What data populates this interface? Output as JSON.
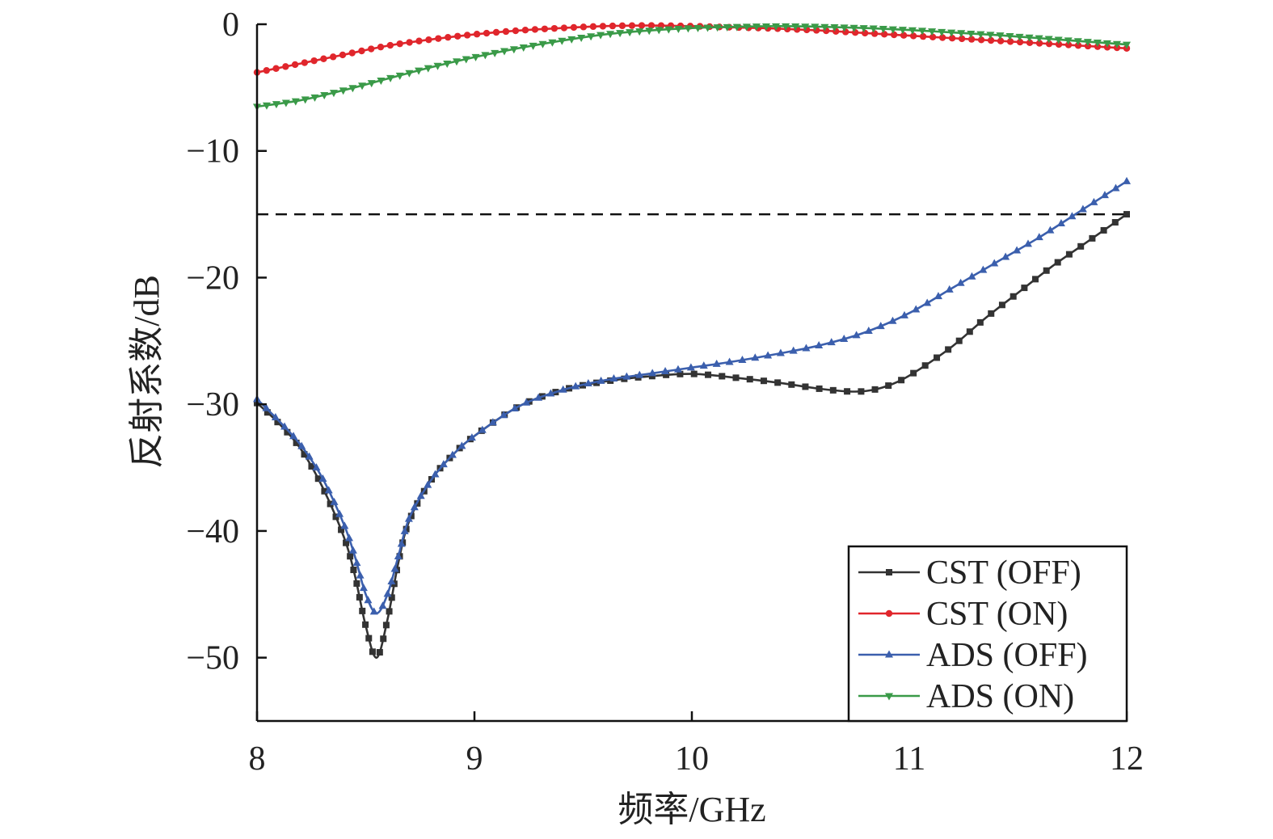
{
  "chart_data": {
    "type": "line",
    "xlabel": "频率/GHz",
    "ylabel": "反射系数/dB",
    "xlim": [
      8,
      12
    ],
    "ylim": [
      -55,
      0
    ],
    "xticks": [
      8,
      9,
      10,
      11,
      12
    ],
    "xtick_labels": [
      "8",
      "9",
      "10",
      "11",
      "12"
    ],
    "yticks": [
      0,
      -10,
      -20,
      -30,
      -40,
      -50
    ],
    "ytick_labels": [
      "0",
      "−10",
      "−20",
      "−30",
      "−40",
      "−50"
    ],
    "grid": false,
    "legend_position": "bottom-right",
    "reference_line": {
      "y": -15,
      "style": "dashed",
      "color": "#111111"
    },
    "series": [
      {
        "name": "CST (OFF)",
        "color": "#333333",
        "marker": "square",
        "points": [
          [
            8.0,
            -29.9
          ],
          [
            8.1,
            -31.5
          ],
          [
            8.2,
            -33.5
          ],
          [
            8.3,
            -36.5
          ],
          [
            8.4,
            -40.5
          ],
          [
            8.45,
            -43.5
          ],
          [
            8.5,
            -47.5
          ],
          [
            8.55,
            -50.0
          ],
          [
            8.6,
            -47.0
          ],
          [
            8.65,
            -42.5
          ],
          [
            8.7,
            -39.2
          ],
          [
            8.8,
            -36.0
          ],
          [
            8.9,
            -34.0
          ],
          [
            9.0,
            -32.5
          ],
          [
            9.2,
            -30.2
          ],
          [
            9.4,
            -28.9
          ],
          [
            9.6,
            -28.2
          ],
          [
            9.8,
            -27.8
          ],
          [
            10.0,
            -27.6
          ],
          [
            10.2,
            -27.9
          ],
          [
            10.4,
            -28.3
          ],
          [
            10.6,
            -28.8
          ],
          [
            10.75,
            -29.0
          ],
          [
            10.85,
            -28.8
          ],
          [
            10.95,
            -28.2
          ],
          [
            11.05,
            -27.2
          ],
          [
            11.2,
            -25.4
          ],
          [
            11.35,
            -23.2
          ],
          [
            11.5,
            -21.2
          ],
          [
            11.65,
            -19.2
          ],
          [
            11.8,
            -17.4
          ],
          [
            11.9,
            -16.2
          ],
          [
            12.0,
            -15.0
          ]
        ]
      },
      {
        "name": "CST (ON)",
        "color": "#e0262c",
        "marker": "circle",
        "points": [
          [
            8.0,
            -3.8
          ],
          [
            8.2,
            -3.1
          ],
          [
            8.4,
            -2.4
          ],
          [
            8.6,
            -1.7
          ],
          [
            8.8,
            -1.2
          ],
          [
            9.0,
            -0.8
          ],
          [
            9.2,
            -0.5
          ],
          [
            9.4,
            -0.3
          ],
          [
            9.6,
            -0.15
          ],
          [
            9.8,
            -0.1
          ],
          [
            10.0,
            -0.15
          ],
          [
            10.2,
            -0.25
          ],
          [
            10.4,
            -0.35
          ],
          [
            10.6,
            -0.5
          ],
          [
            10.8,
            -0.7
          ],
          [
            11.0,
            -0.9
          ],
          [
            11.2,
            -1.1
          ],
          [
            11.4,
            -1.3
          ],
          [
            11.6,
            -1.5
          ],
          [
            11.8,
            -1.7
          ],
          [
            12.0,
            -1.9
          ]
        ]
      },
      {
        "name": "ADS (OFF)",
        "color": "#3b5fad",
        "marker": "triangle-up",
        "points": [
          [
            8.0,
            -29.6
          ],
          [
            8.1,
            -31.3
          ],
          [
            8.2,
            -33.2
          ],
          [
            8.3,
            -35.8
          ],
          [
            8.4,
            -39.5
          ],
          [
            8.45,
            -42.0
          ],
          [
            8.5,
            -45.0
          ],
          [
            8.55,
            -46.5
          ],
          [
            8.6,
            -45.0
          ],
          [
            8.65,
            -42.0
          ],
          [
            8.7,
            -39.0
          ],
          [
            8.8,
            -36.0
          ],
          [
            8.9,
            -34.0
          ],
          [
            9.0,
            -32.5
          ],
          [
            9.2,
            -30.2
          ],
          [
            9.4,
            -28.9
          ],
          [
            9.6,
            -28.1
          ],
          [
            9.8,
            -27.6
          ],
          [
            10.0,
            -27.1
          ],
          [
            10.2,
            -26.6
          ],
          [
            10.4,
            -26.0
          ],
          [
            10.6,
            -25.3
          ],
          [
            10.8,
            -24.3
          ],
          [
            11.0,
            -22.8
          ],
          [
            11.2,
            -20.8
          ],
          [
            11.4,
            -18.8
          ],
          [
            11.6,
            -16.8
          ],
          [
            11.8,
            -14.6
          ],
          [
            12.0,
            -12.4
          ]
        ]
      },
      {
        "name": "ADS (ON)",
        "color": "#3a9a48",
        "marker": "triangle-down",
        "points": [
          [
            8.0,
            -6.5
          ],
          [
            8.2,
            -6.0
          ],
          [
            8.4,
            -5.2
          ],
          [
            8.6,
            -4.3
          ],
          [
            8.8,
            -3.4
          ],
          [
            9.0,
            -2.6
          ],
          [
            9.2,
            -1.9
          ],
          [
            9.4,
            -1.3
          ],
          [
            9.6,
            -0.8
          ],
          [
            9.8,
            -0.5
          ],
          [
            10.0,
            -0.3
          ],
          [
            10.2,
            -0.2
          ],
          [
            10.4,
            -0.15
          ],
          [
            10.6,
            -0.2
          ],
          [
            10.8,
            -0.3
          ],
          [
            11.0,
            -0.45
          ],
          [
            11.2,
            -0.65
          ],
          [
            11.4,
            -0.85
          ],
          [
            11.6,
            -1.1
          ],
          [
            11.8,
            -1.35
          ],
          [
            12.0,
            -1.6
          ]
        ]
      }
    ]
  }
}
